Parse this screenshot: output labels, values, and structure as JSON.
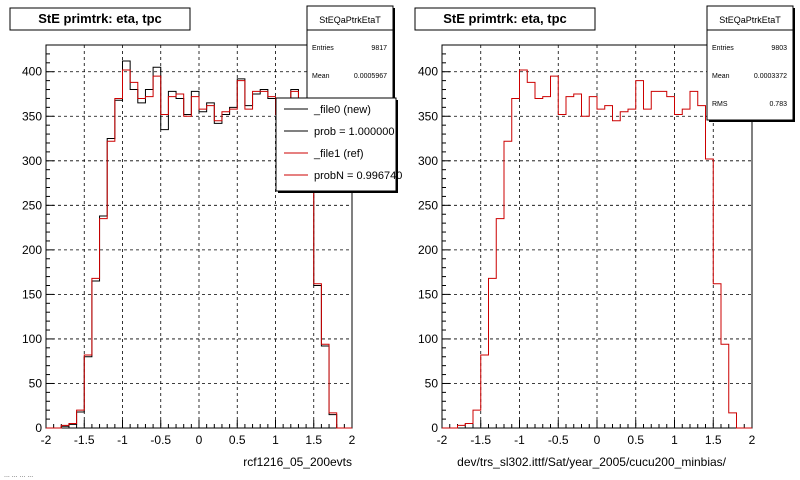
{
  "chart_data": [
    {
      "type": "line",
      "title": "StE primtrk: eta, tpc",
      "xlabel": "rcf1216_05_200evts",
      "ylabel": "",
      "xlim": [
        -2,
        2
      ],
      "ylim": [
        0,
        430
      ],
      "xticks": [
        "-2",
        "-1.5",
        "-1",
        "-0.5",
        "0",
        "0.5",
        "1",
        "1.5",
        "2"
      ],
      "yticks": [
        "0",
        "50",
        "100",
        "150",
        "200",
        "250",
        "300",
        "350",
        "400"
      ],
      "grid": true,
      "bin_edges_start": -2.0,
      "bin_width": 0.1,
      "series": [
        {
          "name": "_file0 (new)",
          "color": "#000000",
          "values": [
            0,
            0,
            2,
            4,
            18,
            80,
            165,
            238,
            325,
            368,
            412,
            380,
            365,
            380,
            405,
            335,
            378,
            370,
            352,
            378,
            355,
            365,
            342,
            352,
            360,
            392,
            362,
            375,
            380,
            370,
            355,
            360,
            380,
            365,
            305,
            160,
            92,
            15,
            0,
            0
          ]
        },
        {
          "name": "_file1 (ref)",
          "color": "#cc0000",
          "values": [
            0,
            0,
            3,
            5,
            20,
            82,
            168,
            235,
            322,
            370,
            402,
            388,
            370,
            372,
            395,
            352,
            372,
            375,
            350,
            372,
            358,
            362,
            345,
            355,
            358,
            390,
            358,
            378,
            378,
            372,
            352,
            358,
            378,
            362,
            302,
            162,
            94,
            17,
            0,
            0
          ]
        }
      ],
      "stats": {
        "name": "StEQaPtrkEtaT",
        "entries_label": "Entries",
        "entries": "9817",
        "mean_label": "Mean",
        "mean": "0.0005967"
      },
      "legend": {
        "placement": "top-right",
        "entries": [
          "_file0 (new)",
          "prob = 1.000000",
          "_file1 (ref)",
          "probN = 0.996740"
        ]
      }
    },
    {
      "type": "line",
      "title": "StE primtrk: eta, tpc",
      "xlabel": "dev/trs_sl302.ittf/Sat/year_2005/cucu200_minbias/",
      "ylabel": "",
      "xlim": [
        -2,
        2
      ],
      "ylim": [
        0,
        430
      ],
      "xticks": [
        "-2",
        "-1.5",
        "-1",
        "-0.5",
        "0",
        "0.5",
        "1",
        "1.5",
        "2"
      ],
      "yticks": [
        "0",
        "50",
        "100",
        "150",
        "200",
        "250",
        "300",
        "350",
        "400"
      ],
      "grid": true,
      "bin_edges_start": -2.0,
      "bin_width": 0.1,
      "series": [
        {
          "color": "#cc0000",
          "values": [
            0,
            0,
            3,
            5,
            20,
            82,
            168,
            235,
            322,
            370,
            402,
            388,
            370,
            372,
            395,
            352,
            372,
            375,
            350,
            372,
            358,
            362,
            345,
            355,
            358,
            390,
            358,
            378,
            378,
            372,
            352,
            358,
            378,
            362,
            302,
            162,
            94,
            17,
            0,
            0
          ]
        }
      ],
      "stats": {
        "name": "StEQaPtrkEtaT",
        "entries_label": "Entries",
        "entries": "9803",
        "mean_label": "Mean",
        "mean": "0.0003372",
        "rms_label": "RMS",
        "rms": "0.783"
      }
    }
  ],
  "footer": {
    "left_corner": "... ... ... ..."
  }
}
